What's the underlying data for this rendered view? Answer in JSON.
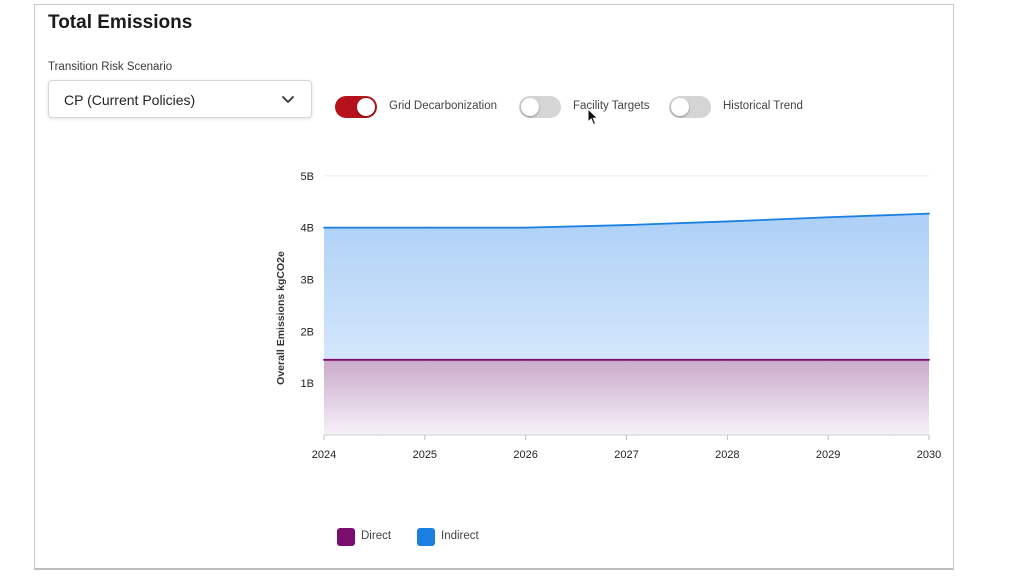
{
  "title": "Total Emissions",
  "scenario": {
    "label": "Transition Risk Scenario",
    "selected": "CP (Current Policies)"
  },
  "toggles": [
    {
      "label": "Grid Decarbonization",
      "on": true
    },
    {
      "label": "Facility Targets",
      "on": false
    },
    {
      "label": "Historical Trend",
      "on": false
    }
  ],
  "colors": {
    "accent": "#b5121b",
    "direct": "#7b0d6f",
    "indirect": "#1a7fe0"
  },
  "chart_data": {
    "type": "area",
    "stacked": false,
    "x": [
      "2024",
      "2025",
      "2026",
      "2027",
      "2028",
      "2029",
      "2030"
    ],
    "series": [
      {
        "name": "Direct",
        "values": [
          1.45,
          1.45,
          1.45,
          1.45,
          1.45,
          1.45,
          1.45
        ],
        "color": "#7b0d6f"
      },
      {
        "name": "Indirect",
        "values": [
          4.0,
          4.0,
          4.0,
          4.05,
          4.12,
          4.2,
          4.27
        ],
        "color": "#1a7fe0"
      }
    ],
    "xlabel": "",
    "ylabel": "Overall Emissions kgCO2e",
    "ylim": [
      0,
      4.9
    ],
    "yticks": [
      {
        "value": 1,
        "label": "1B"
      },
      {
        "value": 2,
        "label": "2B"
      },
      {
        "value": 3,
        "label": "3B"
      },
      {
        "value": 4,
        "label": "4B"
      },
      {
        "value": 5,
        "label": "5B"
      }
    ],
    "grid": true,
    "legend": "bottom-left"
  }
}
